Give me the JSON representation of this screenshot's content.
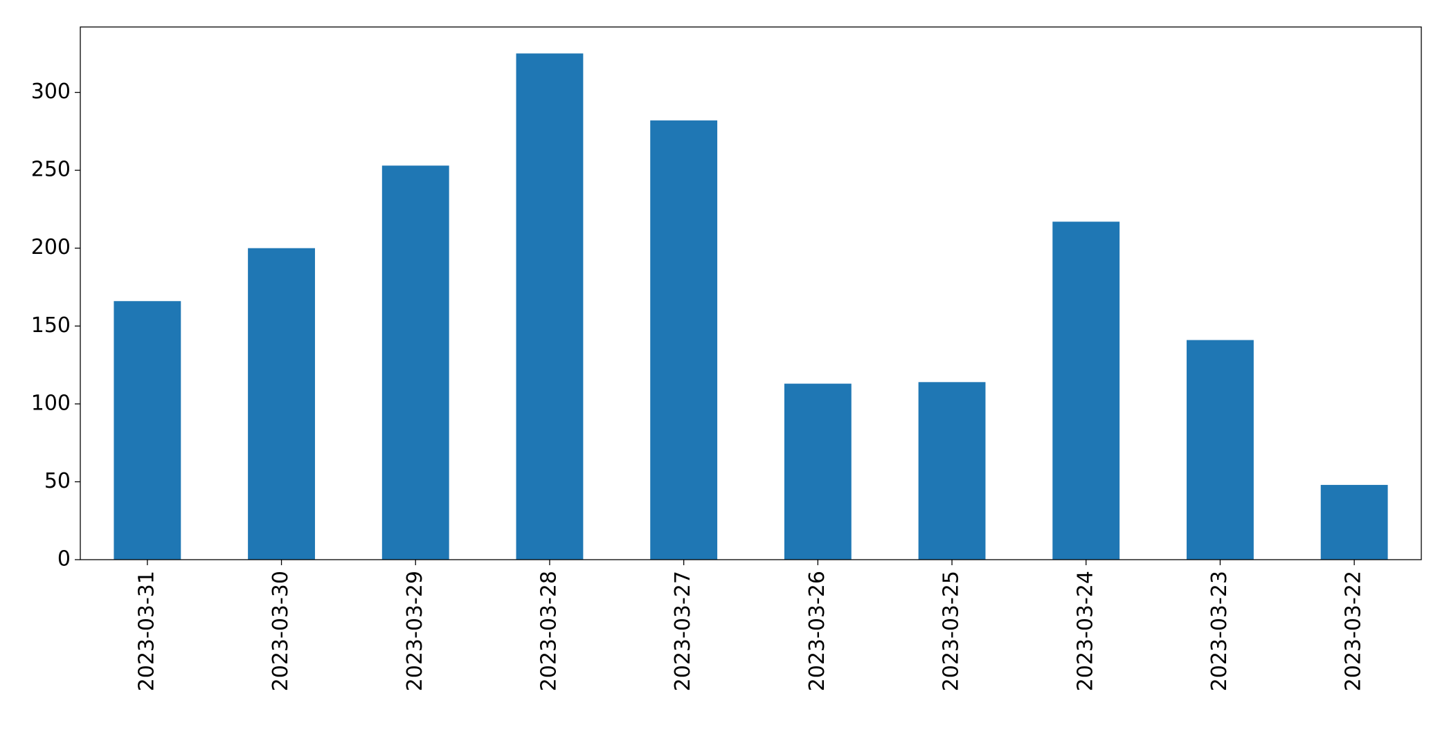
{
  "chart_data": {
    "type": "bar",
    "categories": [
      "2023-03-31",
      "2023-03-30",
      "2023-03-29",
      "2023-03-28",
      "2023-03-27",
      "2023-03-26",
      "2023-03-25",
      "2023-03-24",
      "2023-03-23",
      "2023-03-22"
    ],
    "values": [
      166,
      200,
      253,
      325,
      282,
      113,
      114,
      217,
      141,
      48
    ],
    "color": "#1f77b4",
    "ylim": [
      0,
      342
    ],
    "yticks": [
      0,
      50,
      100,
      150,
      200,
      250,
      300
    ],
    "grid": false
  }
}
